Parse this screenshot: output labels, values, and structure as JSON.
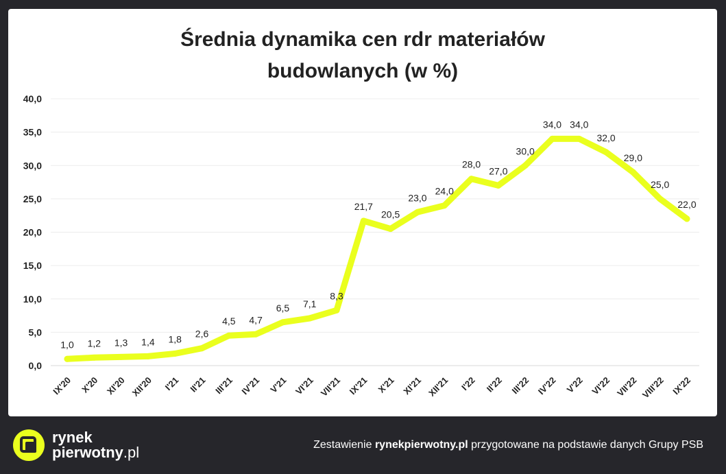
{
  "title_line1": "Średnia dynamika cen rdr materiałów",
  "title_line2": "budowlanych (w %)",
  "colors": {
    "line": "#eaff1e",
    "background": "#26262b",
    "card": "#ffffff"
  },
  "footer": {
    "logo_line1": "rynek",
    "logo_line2_main": "pierwotny",
    "logo_line2_tld": ".pl",
    "source_prefix": "Zestawienie",
    "source_bold": "rynekpierwotny.pl",
    "source_suffix": "przygotowane na podstawie danych Grupy PSB"
  },
  "chart_data": {
    "type": "line",
    "title": "Średnia dynamika cen rdr materiałów budowlanych (w %)",
    "categories": [
      "IX'20",
      "X'20",
      "XI'20",
      "XII'20",
      "I'21",
      "II'21",
      "III'21",
      "IV'21",
      "V'21",
      "VI'21",
      "VII'21",
      "IX'21",
      "X'21",
      "XI'21",
      "XII'21",
      "I'22",
      "II'22",
      "III'22",
      "IV'22",
      "V'22",
      "VI'22",
      "VII'22",
      "VIII'22",
      "IX'22"
    ],
    "values": [
      1.0,
      1.2,
      1.3,
      1.4,
      1.8,
      2.6,
      4.5,
      4.7,
      6.5,
      7.1,
      8.3,
      21.7,
      20.5,
      23.0,
      24.0,
      28.0,
      27.0,
      30.0,
      34.0,
      34.0,
      32.0,
      29.0,
      25.0,
      22.0
    ],
    "data_labels": [
      "1,0",
      "1,2",
      "1,3",
      "1,4",
      "1,8",
      "2,6",
      "4,5",
      "4,7",
      "6,5",
      "7,1",
      "8,3",
      "21,7",
      "20,5",
      "23,0",
      "24,0",
      "28,0",
      "27,0",
      "30,0",
      "34,0",
      "34,0",
      "32,0",
      "29,0",
      "25,0",
      "22,0"
    ],
    "ylim": [
      0,
      40
    ],
    "yticks": [
      "0,0",
      "5,0",
      "10,0",
      "15,0",
      "20,0",
      "25,0",
      "30,0",
      "35,0",
      "40,0"
    ],
    "grid": true,
    "xlabel": "",
    "ylabel": ""
  }
}
